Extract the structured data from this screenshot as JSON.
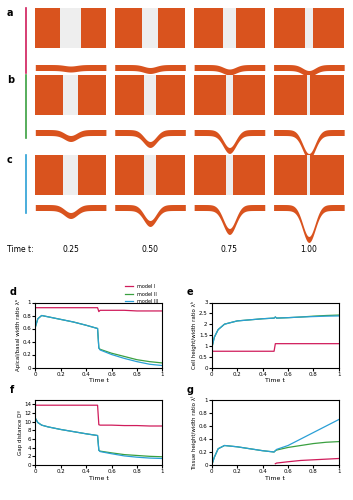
{
  "render_panels": {
    "labels": [
      "a",
      "b",
      "c"
    ],
    "time_label": "Time t:",
    "times": [
      "0.25",
      "0.50",
      "0.75",
      "1.00"
    ]
  },
  "chart_data": [
    {
      "type": "line",
      "title": "d",
      "x_label": "Time t",
      "y_label": "Apical/basal width ratio λᵃ",
      "x": [
        0,
        0.02,
        0.05,
        0.1,
        0.2,
        0.3,
        0.4,
        0.49,
        0.5,
        0.51,
        0.6,
        0.7,
        0.8,
        0.9,
        1.0
      ],
      "xlim": [
        0,
        1
      ],
      "xticks": [
        0,
        0.2,
        0.4,
        0.6,
        0.8,
        1
      ],
      "ylim": [
        0,
        1
      ],
      "yticks": [
        0,
        0.2,
        0.4,
        0.6,
        0.8,
        1
      ],
      "legend": "upper right",
      "series": [
        {
          "name": "model I",
          "color": "#d01c5b",
          "values": [
            0.92,
            0.92,
            0.92,
            0.92,
            0.92,
            0.92,
            0.92,
            0.92,
            0.86,
            0.88,
            0.88,
            0.88,
            0.87,
            0.87,
            0.87
          ]
        },
        {
          "name": "model II",
          "color": "#3aa040",
          "values": [
            0.62,
            0.75,
            0.8,
            0.78,
            0.74,
            0.7,
            0.65,
            0.6,
            0.3,
            0.28,
            0.22,
            0.17,
            0.12,
            0.09,
            0.07
          ]
        },
        {
          "name": "model III",
          "color": "#2a9fd6",
          "values": [
            0.62,
            0.75,
            0.8,
            0.78,
            0.74,
            0.7,
            0.65,
            0.6,
            0.3,
            0.27,
            0.2,
            0.14,
            0.09,
            0.05,
            0.03
          ]
        }
      ]
    },
    {
      "type": "line",
      "title": "e",
      "x_label": "Time t",
      "y_label": "Cell height/width ratio λʰ",
      "x": [
        0,
        0.02,
        0.05,
        0.1,
        0.2,
        0.3,
        0.4,
        0.49,
        0.5,
        0.51,
        0.6,
        0.7,
        0.8,
        0.9,
        1.0
      ],
      "xlim": [
        0,
        1
      ],
      "xticks": [
        0,
        0.2,
        0.4,
        0.6,
        0.8,
        1
      ],
      "ylim": [
        0,
        3
      ],
      "yticks": [
        0,
        0.5,
        1,
        1.5,
        2,
        2.5,
        3
      ],
      "series": [
        {
          "name": "model I",
          "color": "#d01c5b",
          "values": [
            0.75,
            0.75,
            0.75,
            0.75,
            0.75,
            0.75,
            0.75,
            0.75,
            1.1,
            1.1,
            1.1,
            1.1,
            1.1,
            1.1,
            1.1
          ]
        },
        {
          "name": "model II",
          "color": "#3aa040",
          "values": [
            0.9,
            1.4,
            1.75,
            2.0,
            2.15,
            2.2,
            2.25,
            2.28,
            2.33,
            2.28,
            2.3,
            2.33,
            2.37,
            2.4,
            2.42
          ]
        },
        {
          "name": "model III",
          "color": "#2a9fd6",
          "values": [
            0.9,
            1.4,
            1.75,
            2.0,
            2.15,
            2.2,
            2.25,
            2.28,
            2.33,
            2.28,
            2.3,
            2.33,
            2.35,
            2.37,
            2.38
          ]
        }
      ]
    },
    {
      "type": "line",
      "title": "f",
      "x_label": "Time t",
      "y_label": "Gap distance Dᵍ",
      "x": [
        0,
        0.02,
        0.05,
        0.1,
        0.2,
        0.3,
        0.4,
        0.49,
        0.5,
        0.51,
        0.6,
        0.7,
        0.8,
        0.9,
        1.0
      ],
      "xlim": [
        0,
        1
      ],
      "xticks": [
        0,
        0.2,
        0.4,
        0.6,
        0.8,
        1
      ],
      "ylim": [
        0,
        15
      ],
      "yticks": [
        0,
        2,
        4,
        6,
        8,
        10,
        12,
        14
      ],
      "series": [
        {
          "name": "model I",
          "color": "#d01c5b",
          "values": [
            13.8,
            13.8,
            13.8,
            13.8,
            13.8,
            13.8,
            13.8,
            13.8,
            9.3,
            9.2,
            9.2,
            9.1,
            9.1,
            9.0,
            9.0
          ]
        },
        {
          "name": "model II",
          "color": "#3aa040",
          "values": [
            10.8,
            9.8,
            9.2,
            8.8,
            8.2,
            7.7,
            7.2,
            6.8,
            3.4,
            3.2,
            2.8,
            2.4,
            2.2,
            2.0,
            1.9
          ]
        },
        {
          "name": "model III",
          "color": "#2a9fd6",
          "values": [
            10.8,
            9.8,
            9.2,
            8.8,
            8.2,
            7.7,
            7.2,
            6.8,
            3.4,
            3.1,
            2.6,
            2.1,
            1.8,
            1.6,
            1.5
          ]
        }
      ]
    },
    {
      "type": "line",
      "title": "g",
      "x_label": "Time t",
      "y_label": "Tissue height/width ratio λᵗ",
      "x": [
        0,
        0.02,
        0.05,
        0.1,
        0.2,
        0.3,
        0.4,
        0.49,
        0.5,
        0.51,
        0.6,
        0.7,
        0.8,
        0.9,
        1.0
      ],
      "xlim": [
        0,
        1
      ],
      "xticks": [
        0,
        0.2,
        0.4,
        0.6,
        0.8,
        1
      ],
      "ylim": [
        0,
        1
      ],
      "yticks": [
        0,
        0.2,
        0.4,
        0.6,
        0.8,
        1
      ],
      "series": [
        {
          "name": "model I",
          "color": "#d01c5b",
          "values": [
            null,
            null,
            null,
            null,
            null,
            null,
            null,
            null,
            0.02,
            0.03,
            0.05,
            0.07,
            0.08,
            0.09,
            0.1
          ]
        },
        {
          "name": "model II",
          "color": "#3aa040",
          "values": [
            0,
            0.12,
            0.25,
            0.3,
            0.28,
            0.25,
            0.22,
            0.2,
            0.22,
            0.23,
            0.27,
            0.3,
            0.33,
            0.35,
            0.36
          ]
        },
        {
          "name": "model III",
          "color": "#2a9fd6",
          "values": [
            0,
            0.12,
            0.25,
            0.3,
            0.28,
            0.25,
            0.22,
            0.2,
            0.22,
            0.24,
            0.3,
            0.4,
            0.5,
            0.6,
            0.7
          ]
        }
      ]
    }
  ]
}
